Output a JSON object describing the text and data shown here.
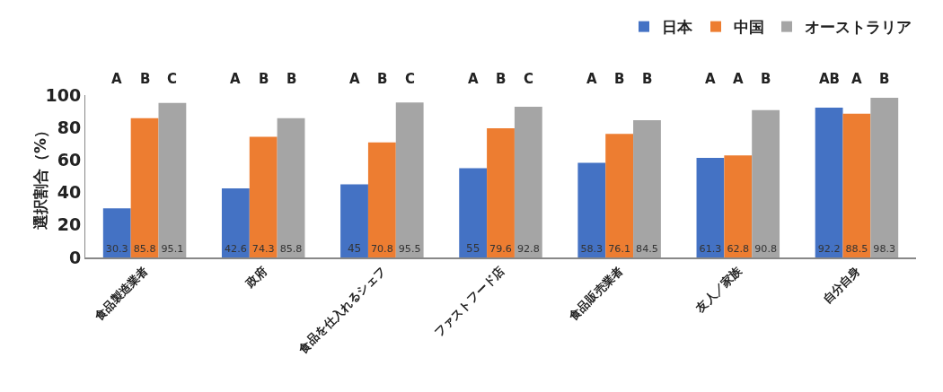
{
  "chart_data": {
    "type": "bar",
    "categories": [
      "食品製造業者",
      "政府",
      "食品を仕入れるシェフ",
      "ファストフード店",
      "食品販売業者",
      "友人／家族",
      "自分自身"
    ],
    "series": [
      {
        "name": "日本",
        "color": "#4472c4",
        "values": [
          30.3,
          42.6,
          45,
          55,
          58.3,
          61.3,
          92.2
        ]
      },
      {
        "name": "中国",
        "color": "#ed7d31",
        "values": [
          85.8,
          74.3,
          70.8,
          79.6,
          76.1,
          62.8,
          88.5
        ]
      },
      {
        "name": "オーストラリア",
        "color": "#a5a5a5",
        "values": [
          95.1,
          85.8,
          95.5,
          92.8,
          84.5,
          90.8,
          98.3
        ]
      }
    ],
    "ylabel": "選択割合（%）",
    "ylim": [
      0,
      100
    ],
    "yticks": [
      0,
      20,
      40,
      60,
      80,
      100
    ],
    "grid": false,
    "legend": "top right",
    "data_labels": true,
    "annotations": [
      "A",
      "B",
      "C",
      "A",
      "B",
      "B",
      "A",
      "B",
      "C",
      "A",
      "B",
      "C",
      "A",
      "B",
      "B",
      "A",
      "A",
      "B",
      "AB",
      "A",
      "B"
    ]
  }
}
